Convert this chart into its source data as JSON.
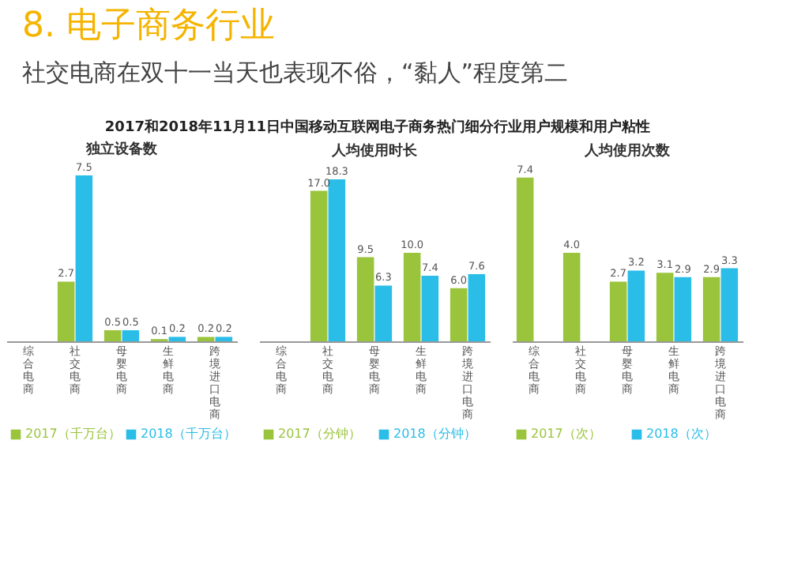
{
  "chart_data": [
    {
      "type": "bar",
      "title": "独立设备数",
      "legend": "bottom",
      "annotations": [
        "8. 电子商务行业",
        "社交电商在双十一当天也表现不俗，“黏人”程度第二",
        "2017和2018年11月11日中国移动互联网电子商务热门细分行业用户规模和用户粘性"
      ],
      "categories": [
        "综合电商",
        "社交电商",
        "母婴电商",
        "生鲜电商",
        "跨境进口电商"
      ],
      "series": [
        {
          "name": "2017（千万台）",
          "color": "#9ac43c",
          "values": [
            null,
            2.7,
            0.5,
            0.1,
            0.2
          ],
          "value_labels": [
            null,
            "2.7",
            "0.5",
            "0.1",
            "0.2"
          ]
        },
        {
          "name": "2018（千万台）",
          "color": "#29bde8",
          "values": [
            null,
            7.5,
            0.5,
            0.2,
            0.2
          ],
          "value_labels": [
            null,
            "7.5",
            "0.5",
            "0.2",
            "0.2"
          ]
        }
      ]
    },
    {
      "type": "bar",
      "title": "人均使用时长",
      "legend": "bottom",
      "categories": [
        "综合电商",
        "社交电商",
        "母婴电商",
        "生鲜电商",
        "跨境进口电商"
      ],
      "series": [
        {
          "name": "2017（分钟）",
          "color": "#9ac43c",
          "values": [
            null,
            17.0,
            9.5,
            10.0,
            6.0
          ],
          "value_labels": [
            null,
            "17.0",
            "9.5",
            "10.0",
            "6.0"
          ]
        },
        {
          "name": "2018（分钟）",
          "color": "#29bde8",
          "values": [
            null,
            18.3,
            6.3,
            7.4,
            7.6
          ],
          "value_labels": [
            null,
            "18.3",
            "6.3",
            "7.4",
            "7.6"
          ]
        }
      ]
    },
    {
      "type": "bar",
      "title": "人均使用次数",
      "legend": "bottom",
      "categories": [
        "综合电商",
        "社交电商",
        "母婴电商",
        "生鲜电商",
        "跨境进口电商"
      ],
      "series": [
        {
          "name": "2017（次）",
          "color": "#9ac43c",
          "values": [
            7.4,
            4.0,
            2.7,
            3.1,
            2.9
          ],
          "value_labels": [
            "7.4",
            "4.0",
            "2.7",
            "3.1",
            "2.9"
          ]
        },
        {
          "name": "2018（次）",
          "color": "#29bde8",
          "values": [
            null,
            null,
            3.2,
            2.9,
            3.3
          ],
          "value_labels": [
            null,
            null,
            "3.2",
            "2.9",
            "3.3"
          ]
        }
      ]
    }
  ]
}
